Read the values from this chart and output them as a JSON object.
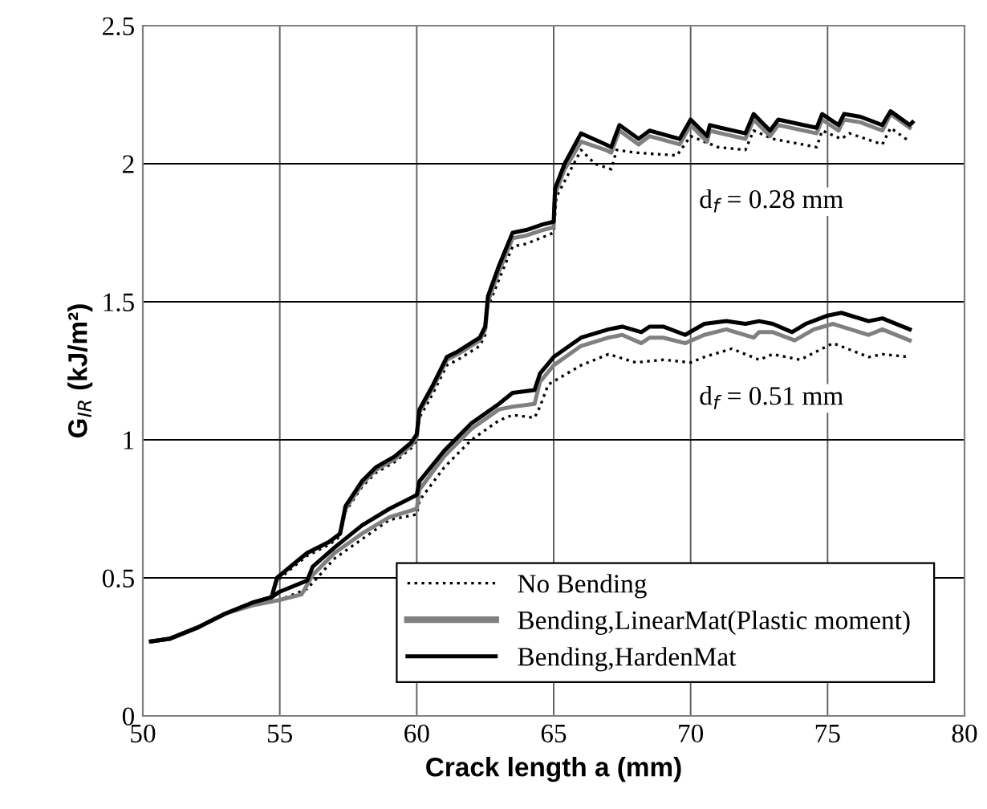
{
  "chart_data": {
    "type": "line",
    "xlabel": "Crack length a (mm)",
    "ylabel": "G$_{IR}$ (kJ/m²)",
    "xlim": [
      50,
      80
    ],
    "xticks": [
      50,
      55,
      60,
      65,
      70,
      75,
      80
    ],
    "ylim": [
      0,
      2.5
    ],
    "yticks": [
      0,
      0.5,
      1,
      1.5,
      2,
      2.5
    ],
    "grid": true,
    "legend": "bottom right",
    "marker": "none",
    "annotations": [
      "d$_{f}$ = 0.28 mm",
      "d$_{f}$ = 0.51 mm"
    ],
    "series": [
      {
        "name": "No Bending",
        "color": "#000000",
        "line_style": "dotted",
        "x": [
          50.3,
          51,
          52,
          53,
          54,
          54.7,
          54.9,
          55.5,
          56,
          56.8,
          57.2,
          57.4,
          58,
          58.5,
          59.2,
          59.8,
          60,
          60.1,
          60.6,
          61.1,
          61.5,
          62.3,
          62.5,
          62.6,
          63,
          63.5,
          64,
          65,
          65.1,
          66,
          66.5,
          67.1,
          67.3,
          68,
          69.5,
          70,
          71,
          72,
          72.3,
          73,
          74.6,
          74.8,
          75.5,
          75.8,
          77,
          77.3,
          78
        ],
        "values": [
          0.27,
          0.28,
          0.32,
          0.37,
          0.41,
          0.43,
          0.49,
          0.54,
          0.58,
          0.62,
          0.65,
          0.74,
          0.83,
          0.88,
          0.92,
          0.97,
          1.0,
          1.08,
          1.17,
          1.27,
          1.29,
          1.34,
          1.38,
          1.48,
          1.58,
          1.7,
          1.71,
          1.75,
          1.88,
          2.05,
          2.0,
          1.98,
          2.05,
          2.04,
          2.03,
          2.1,
          2.06,
          2.05,
          2.12,
          2.09,
          2.06,
          2.12,
          2.09,
          2.11,
          2.07,
          2.13,
          2.08
        ]
      },
      {
        "name": "Bending,LinearMat(Plastic moment)",
        "color": "#808080",
        "line_style": "solid",
        "x": [
          50.3,
          51,
          52,
          53,
          54,
          54.7,
          54.9,
          55.5,
          56,
          56.8,
          57.2,
          57.4,
          58,
          58.5,
          59.2,
          59.8,
          60,
          60.1,
          60.6,
          61.1,
          61.5,
          62.3,
          62.5,
          62.6,
          63,
          63.5,
          64,
          64.6,
          65,
          65.05,
          65.4,
          66,
          66.9,
          67.1,
          67.4,
          68.1,
          68.5,
          69.6,
          70,
          70.6,
          70.7,
          71.1,
          72,
          72.3,
          72.9,
          73.2,
          74.6,
          74.8,
          75.4,
          75.6,
          76.2,
          77,
          77.3,
          78
        ],
        "values": [
          0.27,
          0.28,
          0.32,
          0.37,
          0.41,
          0.43,
          0.5,
          0.55,
          0.59,
          0.63,
          0.66,
          0.75,
          0.84,
          0.89,
          0.93,
          0.98,
          1.01,
          1.1,
          1.19,
          1.29,
          1.31,
          1.36,
          1.4,
          1.5,
          1.61,
          1.73,
          1.74,
          1.76,
          1.77,
          1.89,
          1.98,
          2.08,
          2.05,
          2.04,
          2.12,
          2.07,
          2.1,
          2.07,
          2.14,
          2.08,
          2.12,
          2.11,
          2.09,
          2.16,
          2.1,
          2.14,
          2.11,
          2.16,
          2.12,
          2.16,
          2.15,
          2.12,
          2.18,
          2.13
        ]
      },
      {
        "name": "Bending,HardenMat",
        "color": "#000000",
        "line_style": "solid",
        "x": [
          50.3,
          51,
          52,
          53,
          54,
          54.7,
          54.9,
          55.5,
          56,
          56.8,
          57.2,
          57.4,
          58,
          58.5,
          59.2,
          59.8,
          60,
          60.1,
          60.6,
          61.1,
          61.5,
          62.3,
          62.5,
          62.6,
          63,
          63.5,
          64,
          64.6,
          65,
          65.05,
          65.4,
          66,
          66.9,
          67.1,
          67.4,
          68.1,
          68.5,
          69.6,
          70,
          70.6,
          70.7,
          71.1,
          72,
          72.3,
          72.9,
          73.2,
          74.6,
          74.8,
          75.4,
          75.6,
          76.2,
          77,
          77.3,
          78,
          78.1
        ],
        "values": [
          0.27,
          0.28,
          0.32,
          0.37,
          0.41,
          0.43,
          0.5,
          0.55,
          0.59,
          0.63,
          0.66,
          0.76,
          0.85,
          0.9,
          0.94,
          0.99,
          1.02,
          1.11,
          1.2,
          1.3,
          1.32,
          1.37,
          1.41,
          1.52,
          1.63,
          1.75,
          1.76,
          1.78,
          1.79,
          1.91,
          2.0,
          2.11,
          2.07,
          2.06,
          2.14,
          2.09,
          2.12,
          2.09,
          2.16,
          2.1,
          2.14,
          2.13,
          2.11,
          2.18,
          2.12,
          2.16,
          2.13,
          2.18,
          2.14,
          2.18,
          2.17,
          2.14,
          2.19,
          2.14,
          2.15
        ]
      },
      {
        "color": "#000000",
        "line_style": "dotted",
        "x": [
          50.3,
          51,
          52,
          53,
          54,
          55,
          56,
          57,
          58,
          59,
          60,
          60.1,
          61,
          62,
          63,
          63.5,
          64.3,
          64.5,
          64.8,
          66,
          67,
          68,
          69,
          70,
          70.5,
          71.5,
          72.5,
          73,
          74,
          75.2,
          76.5,
          77,
          78
        ],
        "values": [
          0.27,
          0.28,
          0.32,
          0.37,
          0.4,
          0.42,
          0.46,
          0.57,
          0.64,
          0.71,
          0.73,
          0.78,
          0.9,
          1.0,
          1.07,
          1.09,
          1.08,
          1.12,
          1.2,
          1.27,
          1.31,
          1.28,
          1.29,
          1.28,
          1.3,
          1.33,
          1.29,
          1.31,
          1.29,
          1.35,
          1.3,
          1.31,
          1.3
        ]
      },
      {
        "color": "#808080",
        "line_style": "solid",
        "x": [
          50.3,
          51,
          52,
          53,
          54,
          55,
          55.8,
          56.2,
          57,
          58,
          59,
          60,
          60.1,
          61,
          62,
          63,
          63.5,
          64.3,
          64.5,
          65,
          66,
          67,
          67.5,
          68.2,
          68.5,
          69,
          69.8,
          70.5,
          71.3,
          72.3,
          72.5,
          73,
          73.8,
          74.5,
          75.2,
          76.5,
          77,
          78
        ],
        "values": [
          0.27,
          0.28,
          0.32,
          0.37,
          0.4,
          0.42,
          0.44,
          0.51,
          0.59,
          0.66,
          0.72,
          0.75,
          0.82,
          0.94,
          1.04,
          1.11,
          1.12,
          1.13,
          1.21,
          1.27,
          1.34,
          1.37,
          1.38,
          1.35,
          1.37,
          1.37,
          1.35,
          1.38,
          1.4,
          1.37,
          1.39,
          1.39,
          1.36,
          1.4,
          1.42,
          1.38,
          1.4,
          1.36
        ]
      },
      {
        "color": "#000000",
        "line_style": "solid",
        "x": [
          50.3,
          51,
          52,
          53,
          54,
          54.7,
          55,
          56,
          56.2,
          57,
          58,
          59,
          60,
          60.1,
          61,
          62,
          63,
          63.5,
          64.3,
          64.5,
          65,
          66,
          67,
          67.5,
          68.2,
          68.5,
          69,
          69.8,
          70.5,
          71.3,
          72,
          72.5,
          73,
          73.7,
          74.2,
          75,
          75.5,
          76.5,
          77,
          78
        ],
        "values": [
          0.27,
          0.28,
          0.32,
          0.37,
          0.41,
          0.43,
          0.45,
          0.49,
          0.54,
          0.61,
          0.69,
          0.75,
          0.8,
          0.85,
          0.96,
          1.06,
          1.13,
          1.17,
          1.18,
          1.24,
          1.3,
          1.37,
          1.4,
          1.41,
          1.39,
          1.41,
          1.41,
          1.38,
          1.42,
          1.43,
          1.42,
          1.43,
          1.42,
          1.39,
          1.42,
          1.45,
          1.46,
          1.43,
          1.44,
          1.4
        ]
      }
    ]
  }
}
